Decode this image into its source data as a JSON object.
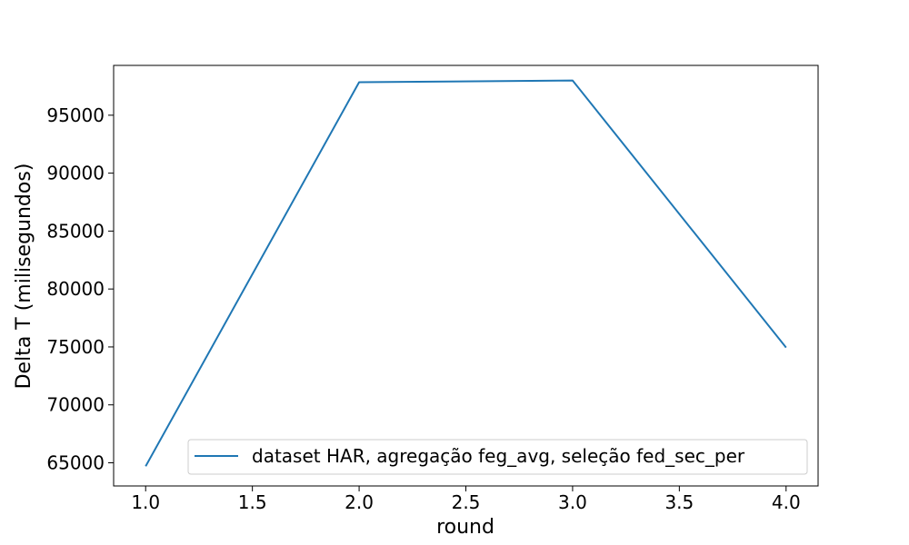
{
  "chart_data": {
    "type": "line",
    "title": "",
    "xlabel": "round",
    "ylabel": "Delta T (milisegundos)",
    "xlim": [
      0.85,
      4.15
    ],
    "ylim": [
      63000,
      99300
    ],
    "x_ticks": [
      1.0,
      1.5,
      2.0,
      2.5,
      3.0,
      3.5,
      4.0
    ],
    "x_tick_labels": [
      "1.0",
      "1.5",
      "2.0",
      "2.5",
      "3.0",
      "3.5",
      "4.0"
    ],
    "y_ticks": [
      65000,
      70000,
      75000,
      80000,
      85000,
      90000,
      95000
    ],
    "y_tick_labels": [
      "65000",
      "70000",
      "75000",
      "80000",
      "85000",
      "90000",
      "95000"
    ],
    "grid": false,
    "legend_position": "lower-right",
    "series": [
      {
        "name": "dataset HAR, agregação feg_avg, seleção fed_sec_per",
        "color": "#1f77b4",
        "x": [
          1.0,
          2.0,
          3.0,
          4.0
        ],
        "y": [
          64700,
          97850,
          98000,
          74950
        ]
      }
    ]
  }
}
